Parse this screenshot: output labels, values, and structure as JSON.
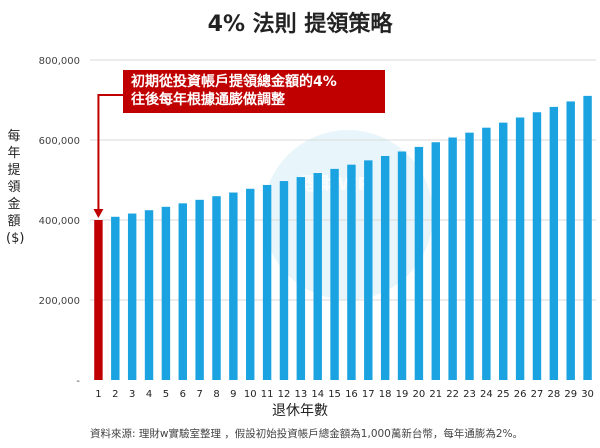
{
  "chart_data": {
    "type": "bar",
    "title": "4% 法則 提領策略",
    "ylabel_chars": [
      "每",
      "年",
      "提",
      "領",
      "金",
      "額",
      "($)"
    ],
    "xlabel": "退休年數",
    "ylim": [
      0,
      800000
    ],
    "yticks": [
      {
        "value": 0,
        "label": "-"
      },
      {
        "value": 200000,
        "label": "200,000"
      },
      {
        "value": 400000,
        "label": "400,000"
      },
      {
        "value": 600000,
        "label": "600,000"
      },
      {
        "value": 800000,
        "label": "800,000"
      }
    ],
    "categories": [
      "1",
      "2",
      "3",
      "4",
      "5",
      "6",
      "7",
      "8",
      "9",
      "10",
      "11",
      "12",
      "13",
      "14",
      "15",
      "16",
      "17",
      "18",
      "19",
      "20",
      "21",
      "22",
      "23",
      "24",
      "25",
      "26",
      "27",
      "28",
      "29",
      "30"
    ],
    "values": [
      400000,
      408000,
      416160,
      424483,
      432973,
      441632,
      450465,
      459474,
      468664,
      478037,
      487598,
      497350,
      507297,
      517443,
      527792,
      538347,
      549114,
      560097,
      571299,
      582725,
      594380,
      606267,
      618393,
      630760,
      643376,
      656243,
      669368,
      682756,
      696411,
      710339
    ],
    "colors": {
      "first": "#c00000",
      "rest": "#1aa3e0"
    },
    "annotation": {
      "lines": [
        "初期從投資帳戶提領總金額的4%",
        "往後每年根據通膨做調整"
      ],
      "color": "#c00000"
    },
    "watermark": "理財WP",
    "source": "資料來源: 理財w實驗室整理 ，假設初始投資帳戶總金額為1,000萬新台幣，每年通膨為2%。"
  }
}
